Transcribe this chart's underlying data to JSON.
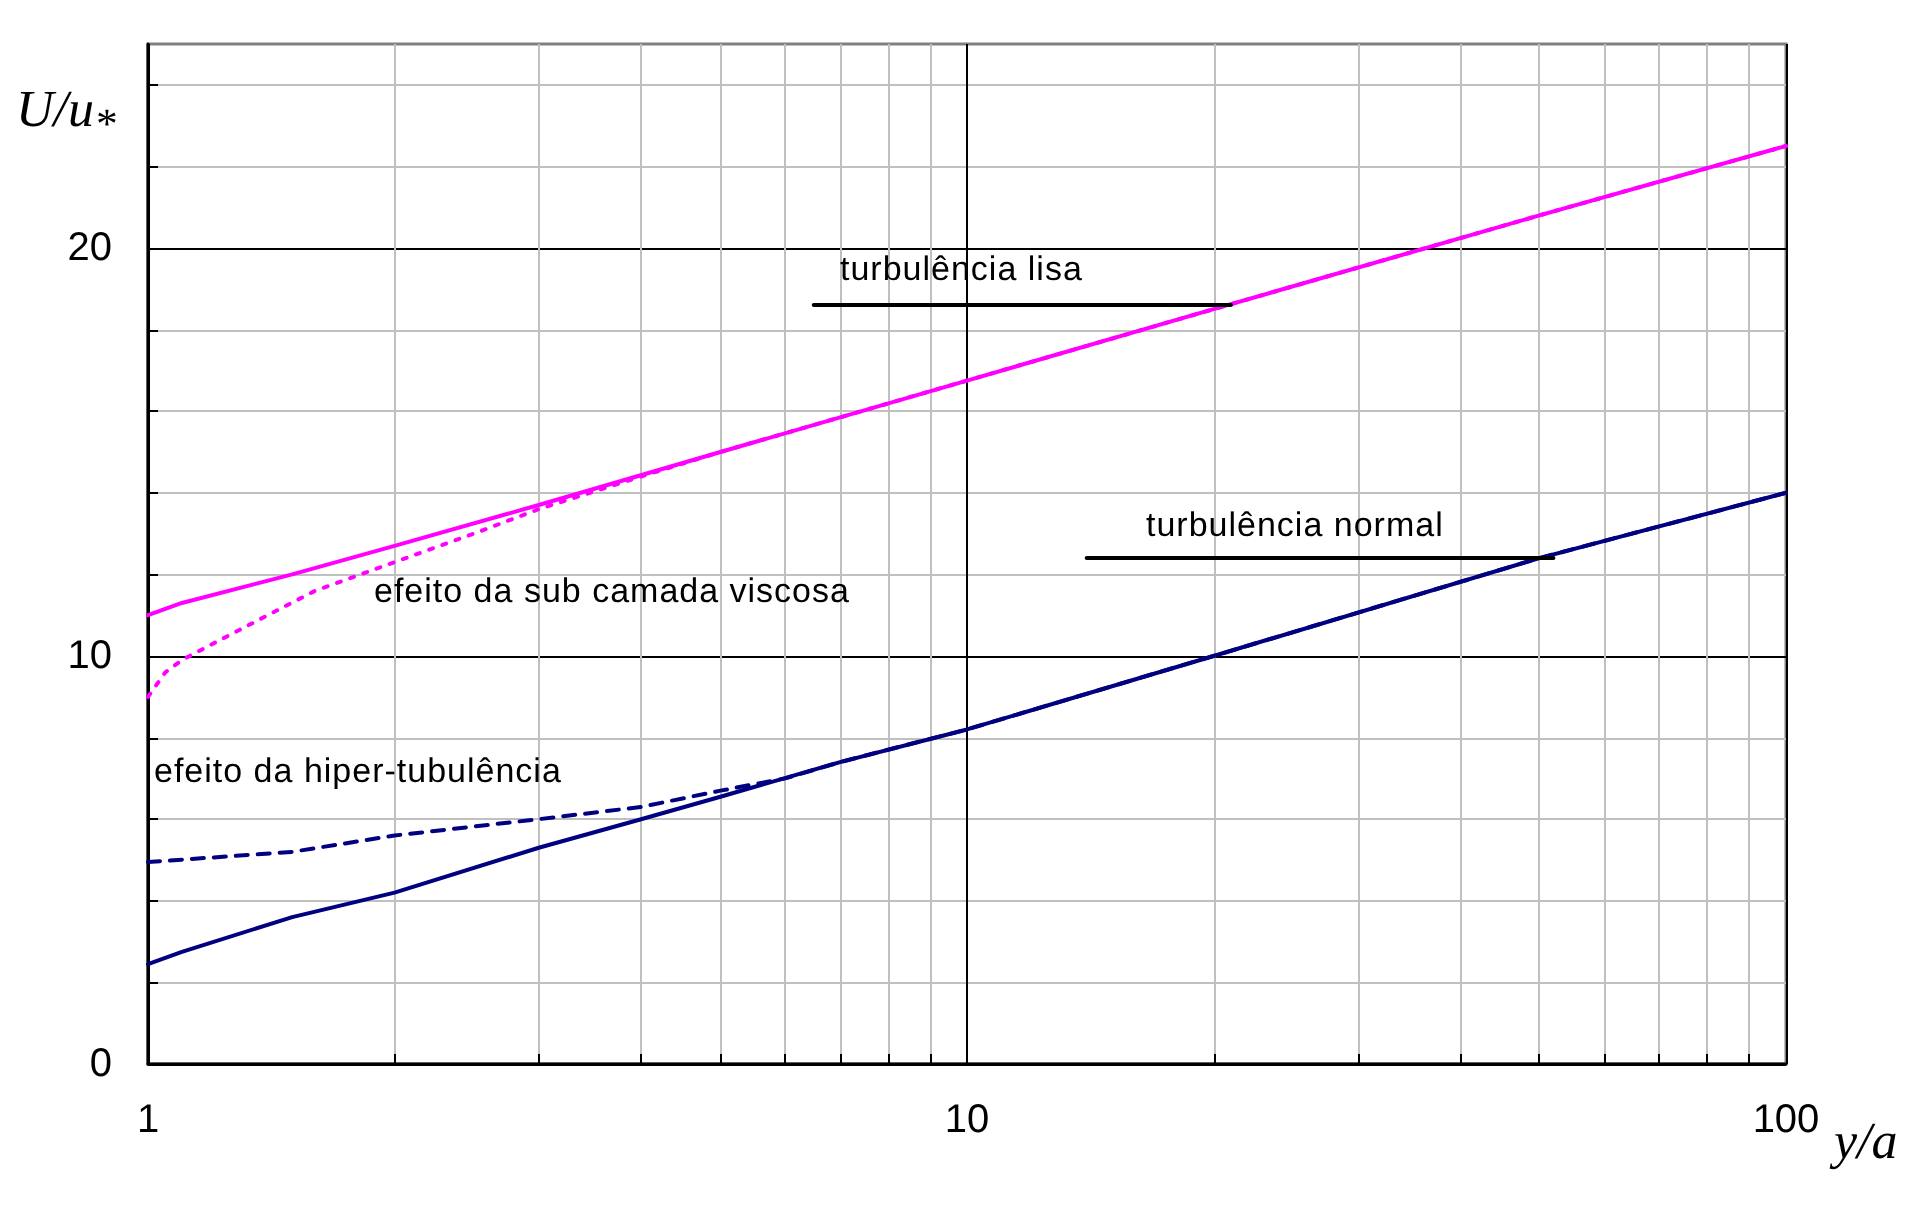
{
  "chart_data": {
    "type": "line",
    "xlabel": "y/a",
    "ylabel": "U/u$_{*}$",
    "log": "x",
    "grid": true,
    "xlim": [
      1,
      100
    ],
    "ylim": [
      0,
      25
    ],
    "xticks": [
      1,
      {
        "value": 2,
        "label": null
      },
      {
        "value": 3,
        "label": null
      },
      {
        "value": 4,
        "label": null
      },
      {
        "value": 5,
        "label": null
      },
      {
        "value": 6,
        "label": null
      },
      {
        "value": 7,
        "label": null
      },
      {
        "value": 8,
        "label": null
      },
      {
        "value": 9,
        "label": null
      },
      10,
      {
        "value": 20,
        "label": null
      },
      {
        "value": 30,
        "label": null
      },
      {
        "value": 40,
        "label": null
      },
      {
        "value": 50,
        "label": null
      },
      {
        "value": 60,
        "label": null
      },
      {
        "value": 70,
        "label": null
      },
      {
        "value": 80,
        "label": null
      },
      {
        "value": 90,
        "label": null
      },
      100
    ],
    "yticks": [
      0,
      {
        "value": 2,
        "label": null
      },
      {
        "value": 4,
        "label": null
      },
      {
        "value": 6,
        "label": null
      },
      {
        "value": 8,
        "label": null
      },
      10,
      {
        "value": 12,
        "label": null
      },
      {
        "value": 14,
        "label": null
      },
      {
        "value": 16,
        "label": null
      },
      {
        "value": 18,
        "label": null
      },
      20,
      {
        "value": 22,
        "label": null
      },
      {
        "value": 24,
        "label": null
      }
    ],
    "annotations": [
      "turbulência lisa",
      "turbulência normal",
      "efeito da sub camada viscosa",
      "efeito da hiper-tubulência"
    ],
    "series": [
      {
        "color": "#ff00ff",
        "line_style": "solid",
        "x": [
          1,
          1.1,
          1.5,
          2,
          3,
          5,
          10,
          20,
          50,
          100
        ],
        "values": [
          11.0,
          11.3,
          12.0,
          12.7,
          13.7,
          15.0,
          16.75,
          18.5,
          20.8,
          22.5
        ]
      },
      {
        "color": "#ff00ff",
        "line_style": "dotted",
        "x": [
          1,
          1.05,
          1.1,
          1.2,
          1.4,
          1.6,
          2,
          2.5,
          3,
          4,
          5,
          10,
          20,
          50,
          100
        ],
        "values": [
          9.0,
          9.6,
          9.9,
          10.3,
          11.0,
          11.6,
          12.3,
          13.0,
          13.6,
          14.4,
          15.0,
          16.75,
          18.5,
          20.8,
          22.5
        ]
      },
      {
        "color": "#000080",
        "line_style": "solid",
        "x": [
          1,
          1.1,
          1.5,
          2,
          3,
          4,
          5,
          7,
          10,
          20,
          50,
          100
        ],
        "values": [
          2.45,
          2.75,
          3.6,
          4.2,
          5.3,
          6.0,
          6.55,
          7.4,
          8.2,
          10.0,
          12.4,
          14.0
        ]
      },
      {
        "color": "#000080",
        "line_style": "dashed",
        "x": [
          1,
          1.5,
          2,
          3,
          4,
          5,
          6,
          7,
          10,
          20,
          50,
          100
        ],
        "values": [
          4.95,
          5.2,
          5.6,
          6.0,
          6.3,
          6.7,
          7.0,
          7.4,
          8.2,
          10.0,
          12.4,
          14.0
        ]
      },
      {
        "color": "#000000",
        "line_style": "solid",
        "x": [
          6.5,
          21
        ],
        "values": [
          18.6,
          18.6
        ]
      },
      {
        "color": "#000000",
        "line_style": "solid",
        "x": [
          14,
          52
        ],
        "values": [
          12.4,
          12.4
        ]
      }
    ]
  }
}
